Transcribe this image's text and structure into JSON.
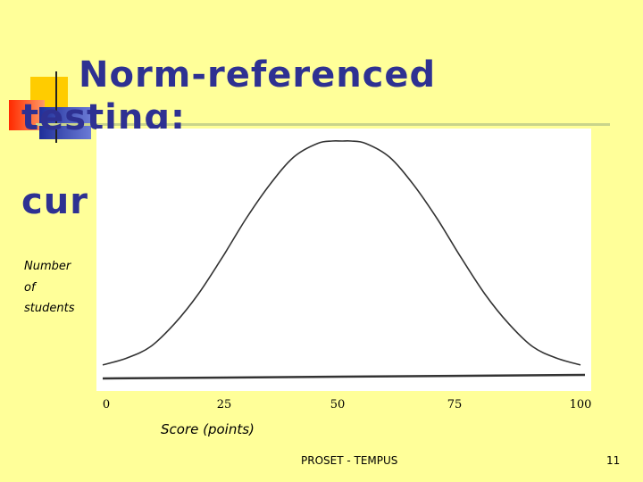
{
  "slide": {
    "title_lines": [
      "Norm-referenced",
      "testing:",
      "cur"
    ],
    "footer": "PROSET -  TEMPUS",
    "page_number": "11"
  },
  "colors": {
    "background": "#ffff99",
    "title": "#2e3192",
    "curve": "#333333"
  },
  "chart_data": {
    "type": "line",
    "shape": "normal-distribution",
    "ylabel_lines": [
      "Number",
      "of",
      "students"
    ],
    "xlabel": "Score (points)",
    "x_ticks": [
      "0",
      "25",
      "50",
      "75",
      "100"
    ],
    "xlim": [
      0,
      100
    ],
    "series": [
      {
        "x": [
          0,
          5,
          10,
          15,
          20,
          25,
          30,
          35,
          40,
          45,
          48,
          50,
          52,
          55,
          60,
          65,
          70,
          75,
          80,
          85,
          90,
          95,
          100
        ],
        "y": [
          0.02,
          0.05,
          0.1,
          0.2,
          0.33,
          0.49,
          0.66,
          0.81,
          0.93,
          0.99,
          1.0,
          1.0,
          1.0,
          0.99,
          0.93,
          0.81,
          0.66,
          0.49,
          0.33,
          0.2,
          0.1,
          0.05,
          0.02
        ]
      }
    ],
    "grid": false
  }
}
